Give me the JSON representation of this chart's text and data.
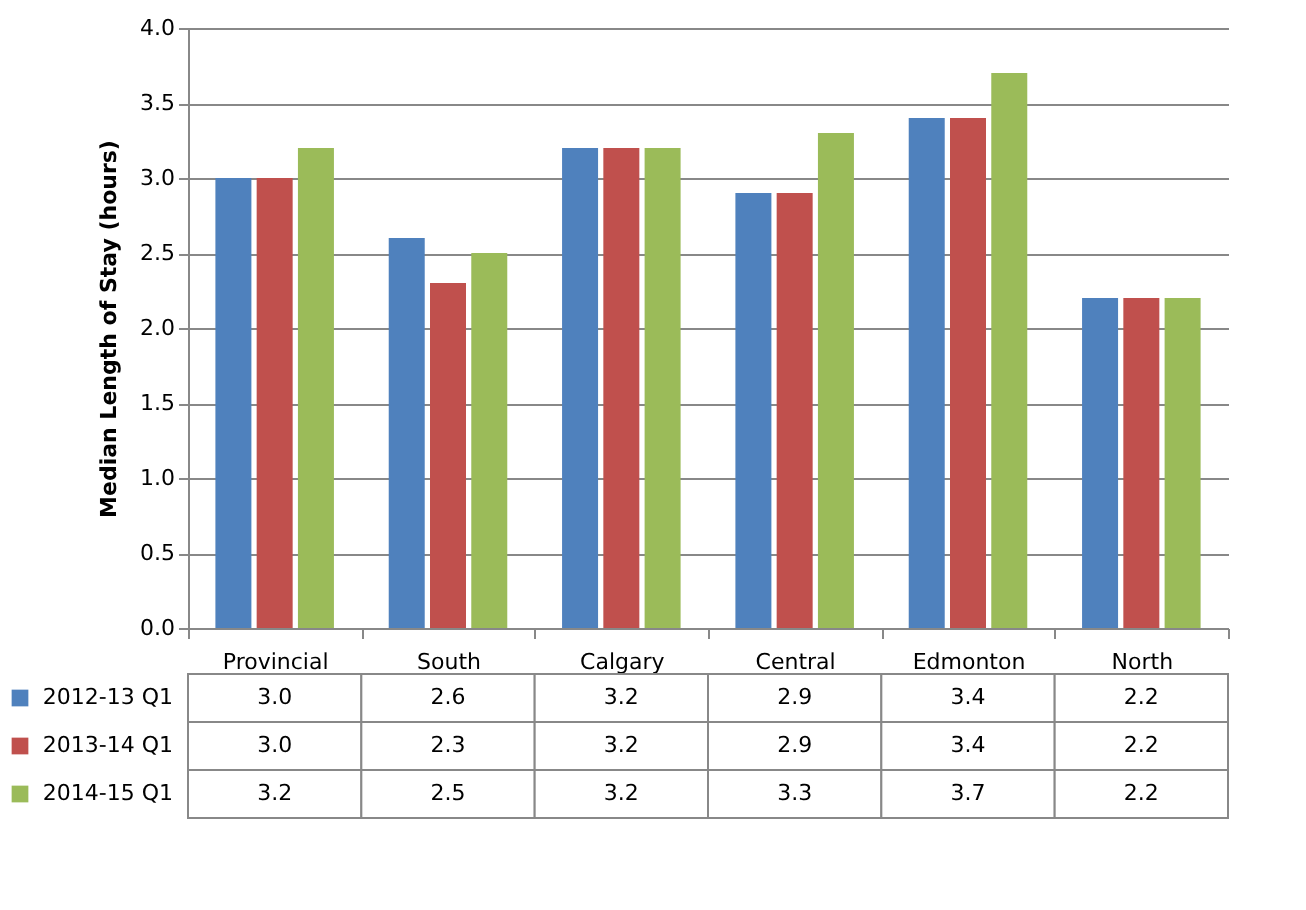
{
  "chart_data": {
    "type": "bar",
    "ylabel": "Median Length of Stay (hours)",
    "categories": [
      "Provincial",
      "South",
      "Calgary",
      "Central",
      "Edmonton",
      "North"
    ],
    "series": [
      {
        "name": "2012-13 Q1",
        "color": "#4f81bd",
        "values": [
          3.0,
          2.6,
          3.2,
          2.9,
          3.4,
          2.2
        ],
        "value_labels": [
          "3.0",
          "2.6",
          "3.2",
          "2.9",
          "3.4",
          "2.2"
        ]
      },
      {
        "name": "2013-14 Q1",
        "color": "#c0504d",
        "values": [
          3.0,
          2.3,
          3.2,
          2.9,
          3.4,
          2.2
        ],
        "value_labels": [
          "3.0",
          "2.3",
          "3.2",
          "2.9",
          "3.4",
          "2.2"
        ]
      },
      {
        "name": "2014-15 Q1",
        "color": "#9bbb59",
        "values": [
          3.2,
          2.5,
          3.2,
          3.3,
          3.7,
          2.2
        ],
        "value_labels": [
          "3.2",
          "2.5",
          "3.2",
          "3.3",
          "3.7",
          "2.2"
        ]
      }
    ],
    "ylim": [
      0,
      4
    ],
    "yticks": [
      {
        "value": 0,
        "label": "0.0"
      },
      {
        "value": 0.5,
        "label": "0.5"
      },
      {
        "value": 1,
        "label": "1.0"
      },
      {
        "value": 1.5,
        "label": "1.5"
      },
      {
        "value": 2,
        "label": "2.0"
      },
      {
        "value": 2.5,
        "label": "2.5"
      },
      {
        "value": 3,
        "label": "3.0"
      },
      {
        "value": 3.5,
        "label": "3.5"
      },
      {
        "value": 4,
        "label": "4.0"
      }
    ],
    "grid": "y",
    "legend": "bottom"
  }
}
